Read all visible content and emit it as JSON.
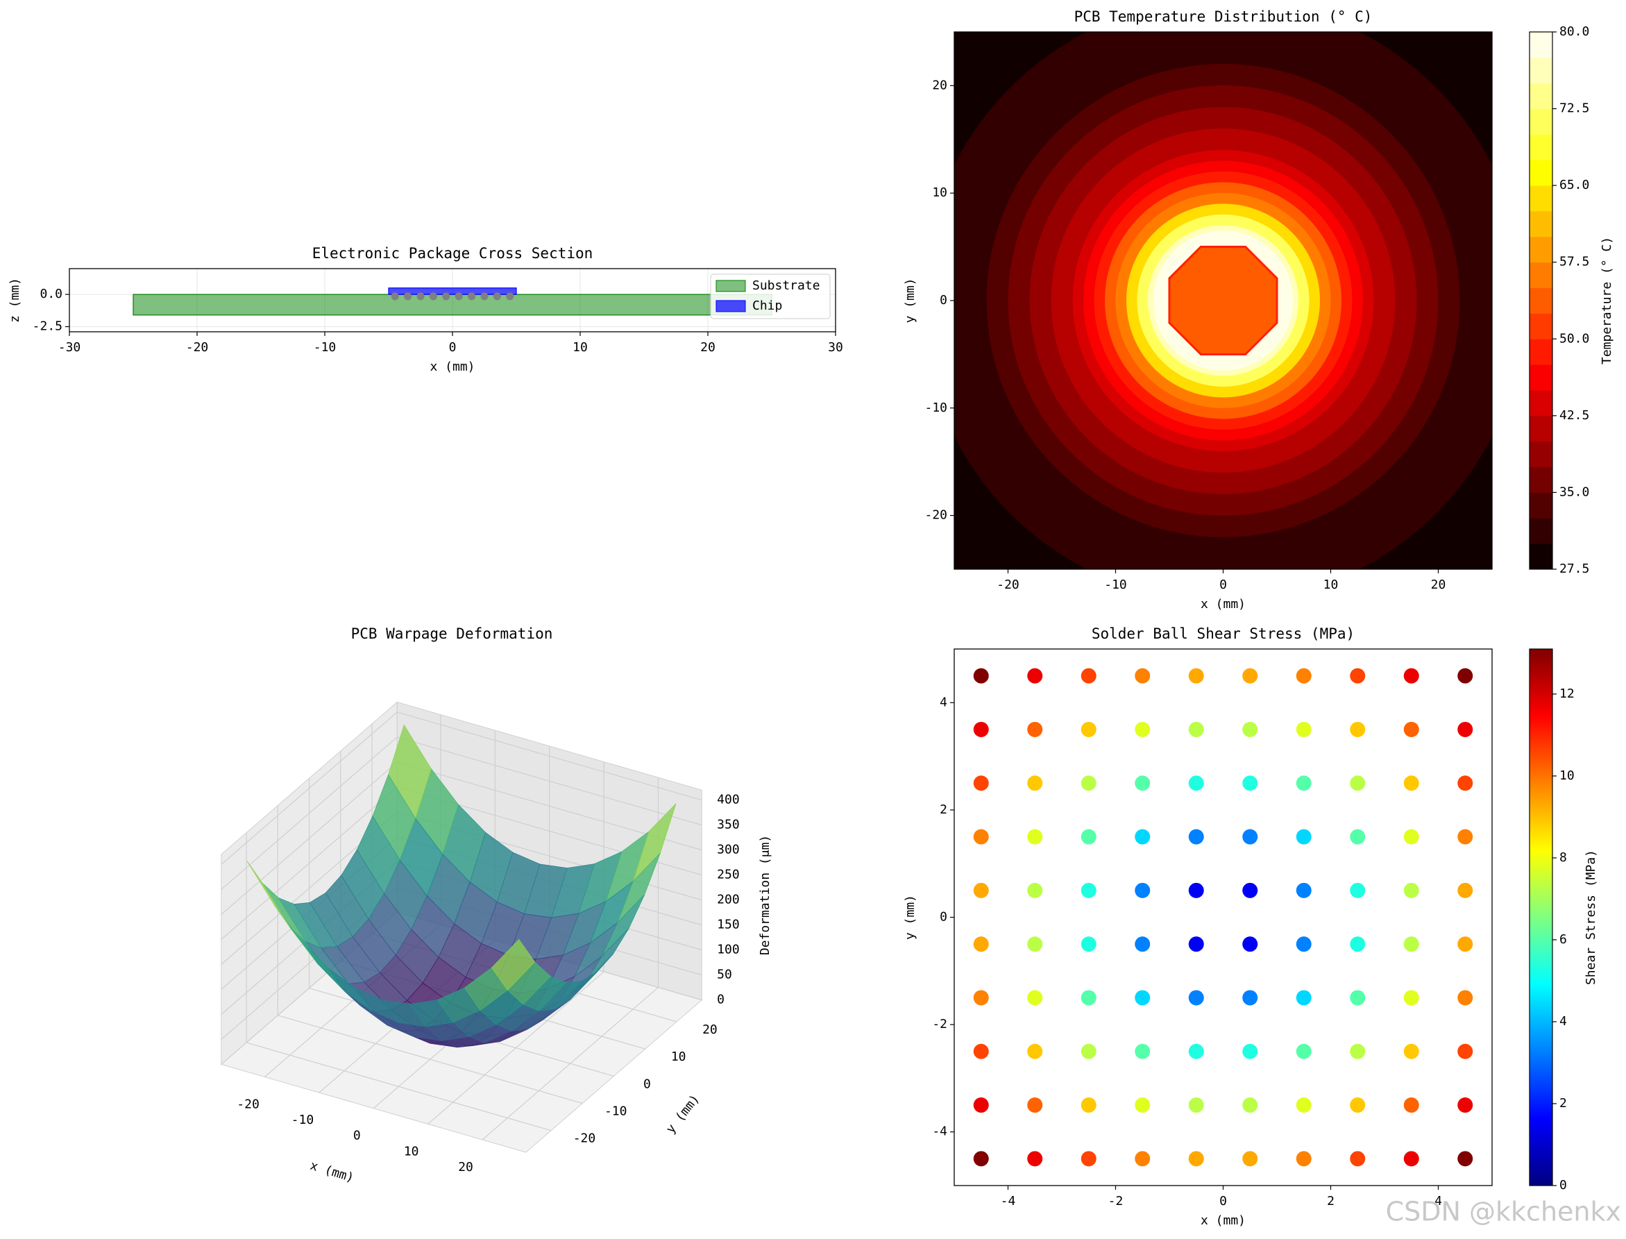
{
  "chart_data": [
    {
      "type": "cross_section",
      "title": "Electronic Package Cross Section",
      "xlabel": "x (mm)",
      "ylabel": "z (mm)",
      "xlim": [
        -30,
        30
      ],
      "xticks": [
        -30,
        -20,
        -10,
        0,
        10,
        20,
        30
      ],
      "ylim": [
        -2.9,
        2.0
      ],
      "yticks": [
        -2.5,
        {
          "value": 0,
          "label": "0.0"
        }
      ],
      "grid": true,
      "legend": "upper right",
      "shapes": [
        {
          "name": "Substrate",
          "color": "#008000",
          "alpha": 0.5,
          "x": [
            -25,
            25
          ],
          "z": [
            -1.6,
            0
          ]
        },
        {
          "name": "Chip",
          "color": "#0000ff",
          "alpha": 0.7,
          "x": [
            -5,
            5
          ],
          "z": [
            0,
            0.5
          ]
        }
      ],
      "balls": {
        "color": "#808080",
        "x": [
          -4.5,
          -3.5,
          -2.5,
          -1.5,
          -0.5,
          0.5,
          1.5,
          2.5,
          3.5,
          4.5
        ],
        "z": -0.15,
        "radius": 0.3
      }
    },
    {
      "type": "contour",
      "title": "PCB Temperature Distribution (° C)",
      "xlabel": "x (mm)",
      "ylabel": "y (mm)",
      "xlim": [
        -25,
        25
      ],
      "ylim": [
        -25,
        25
      ],
      "xticks": [
        -20,
        -10,
        0,
        10,
        20
      ],
      "yticks": [
        -20,
        -10,
        0,
        10,
        20
      ],
      "colormap": "hot",
      "colorbar": {
        "label": "Temperature (° C)",
        "lim": [
          27.5,
          80
        ],
        "step": 2.5,
        "ticks": [
          27.5,
          {
            "value": 35,
            "label": "35.0"
          },
          42.5,
          {
            "value": 50,
            "label": "50.0"
          },
          57.5,
          {
            "value": 65,
            "label": "65.0"
          },
          72.5,
          {
            "value": 80,
            "label": "80.0"
          }
        ]
      },
      "rings": {
        "radius": [
          36,
          31,
          28,
          25,
          22,
          20,
          18,
          16,
          14,
          13,
          12,
          11,
          10,
          9,
          8,
          7,
          6.5
        ],
        "values": [
          28,
          29,
          30,
          32,
          34,
          36,
          38,
          40,
          43,
          46,
          49,
          53,
          57,
          63,
          70,
          77,
          79
        ]
      },
      "core": {
        "radius": 5,
        "value": 54
      }
    },
    {
      "type": "surface3d",
      "title": "PCB Warpage Deformation",
      "xlabel": "x (mm)",
      "ylabel": "y (mm)",
      "zlabel": "Deformation (μm)",
      "x": [
        -25,
        -20,
        -15,
        -10,
        -5,
        0,
        5,
        10,
        15,
        20,
        25
      ],
      "y": [
        -25,
        -20,
        -15,
        -10,
        -5,
        0,
        5,
        10,
        15,
        20,
        25
      ],
      "z": [
        [
          400,
          328,
          272,
          232,
          208,
          200,
          208,
          232,
          272,
          328,
          400
        ],
        [
          328,
          256,
          200,
          160,
          136,
          128,
          136,
          160,
          200,
          256,
          328
        ],
        [
          272,
          200,
          144,
          104,
          80,
          72,
          80,
          104,
          144,
          200,
          272
        ],
        [
          232,
          160,
          104,
          64,
          40,
          32,
          40,
          64,
          104,
          160,
          232
        ],
        [
          208,
          136,
          80,
          40,
          16,
          8,
          16,
          40,
          80,
          136,
          208
        ],
        [
          200,
          128,
          72,
          32,
          8,
          0,
          8,
          32,
          72,
          128,
          200
        ],
        [
          208,
          136,
          80,
          40,
          16,
          8,
          16,
          40,
          80,
          136,
          208
        ],
        [
          232,
          160,
          104,
          64,
          40,
          32,
          40,
          64,
          104,
          160,
          232
        ],
        [
          272,
          200,
          144,
          104,
          80,
          72,
          80,
          104,
          144,
          200,
          272
        ],
        [
          328,
          256,
          200,
          160,
          136,
          128,
          136,
          160,
          200,
          256,
          328
        ],
        [
          400,
          328,
          272,
          232,
          208,
          200,
          208,
          232,
          272,
          328,
          400
        ]
      ],
      "xlim": [
        -28,
        28
      ],
      "ylim": [
        -28,
        28
      ],
      "zlim": [
        0,
        420
      ],
      "xticks": [
        -20,
        -10,
        0,
        10,
        20
      ],
      "yticks": [
        -20,
        -10,
        0,
        10,
        20
      ],
      "zticks": [
        0,
        50,
        100,
        150,
        200,
        250,
        300,
        350,
        400
      ],
      "colormap": "viridis",
      "alpha": 0.8
    },
    {
      "type": "scatter",
      "title": "Solder Ball Shear Stress (MPa)",
      "xlabel": "x (mm)",
      "ylabel": "y (mm)",
      "xlim": [
        -5,
        5
      ],
      "ylim": [
        -5,
        5
      ],
      "xticks": [
        -4,
        -2,
        0,
        2,
        4
      ],
      "yticks": [
        -4,
        -2,
        0,
        2,
        4
      ],
      "x": [
        -4.5,
        -3.5,
        -2.5,
        -1.5,
        -0.5,
        0.5,
        1.5,
        2.5,
        3.5,
        4.5
      ],
      "y": [
        -4.5,
        -3.5,
        -2.5,
        -1.5,
        -0.5,
        0.5,
        1.5,
        2.5,
        3.5,
        4.5
      ],
      "values": [
        [
          13.1,
          11.7,
          10.6,
          9.8,
          9.3,
          9.3,
          9.8,
          10.6,
          11.7,
          13.1
        ],
        [
          11.7,
          10.2,
          8.9,
          7.8,
          7.3,
          7.3,
          7.8,
          8.9,
          10.2,
          11.7
        ],
        [
          10.6,
          8.9,
          7.3,
          6.0,
          5.3,
          5.3,
          6.0,
          7.3,
          8.9,
          10.6
        ],
        [
          9.8,
          7.8,
          6.0,
          4.4,
          3.3,
          3.3,
          4.4,
          6.0,
          7.8,
          9.8
        ],
        [
          9.3,
          7.3,
          5.3,
          3.3,
          1.5,
          1.5,
          3.3,
          5.3,
          7.3,
          9.3
        ],
        [
          9.3,
          7.3,
          5.3,
          3.3,
          1.5,
          1.5,
          3.3,
          5.3,
          7.3,
          9.3
        ],
        [
          9.8,
          7.8,
          6.0,
          4.4,
          3.3,
          3.3,
          4.4,
          6.0,
          7.8,
          9.8
        ],
        [
          10.6,
          8.9,
          7.3,
          6.0,
          5.3,
          5.3,
          6.0,
          7.3,
          8.9,
          10.6
        ],
        [
          11.7,
          10.2,
          8.9,
          7.8,
          7.3,
          7.3,
          7.8,
          8.9,
          10.2,
          11.7
        ],
        [
          13.1,
          11.7,
          10.6,
          9.8,
          9.3,
          9.3,
          9.8,
          10.6,
          11.7,
          13.1
        ]
      ],
      "colormap": "jet",
      "colorbar": {
        "label": "Shear Stress (MPa)",
        "lim": [
          0,
          13.1
        ],
        "ticks": [
          0,
          2,
          4,
          6,
          8,
          10,
          12
        ]
      }
    }
  ],
  "watermark": "CSDN @kkchenkx"
}
